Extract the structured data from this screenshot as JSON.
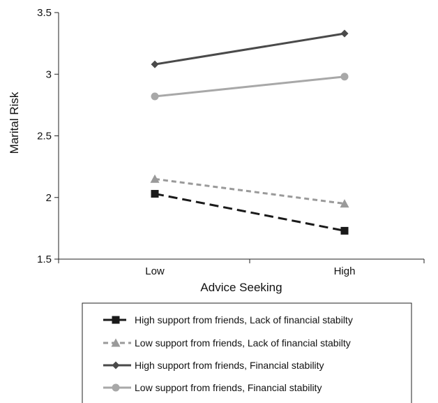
{
  "chart_data": {
    "type": "line",
    "title": "",
    "xlabel": "Advice Seeking",
    "ylabel": "Marital Risk",
    "categories": [
      "Low",
      "High"
    ],
    "ylim": [
      1.5,
      3.5
    ],
    "yticks": [
      "1.5",
      "2",
      "2.5",
      "3",
      "3.5"
    ],
    "grid": false,
    "legend_position": "bottom",
    "series": [
      {
        "name": "High support from friends, Lack of financial stabilty",
        "values": [
          2.03,
          1.73
        ],
        "color": "#1a1a1a",
        "marker": "square",
        "dash": "long-dash"
      },
      {
        "name": "Low support from friends, Lack of financial stabilty",
        "values": [
          2.15,
          1.95
        ],
        "color": "#9a9a9a",
        "marker": "triangle",
        "dash": "dash"
      },
      {
        "name": "High support from friends, Financial stability",
        "values": [
          3.08,
          3.33
        ],
        "color": "#4a4a4a",
        "marker": "diamond",
        "dash": "solid"
      },
      {
        "name": "Low support from friends, Financial stability",
        "values": [
          2.82,
          2.98
        ],
        "color": "#a8a8a8",
        "marker": "circle",
        "dash": "solid"
      }
    ]
  }
}
